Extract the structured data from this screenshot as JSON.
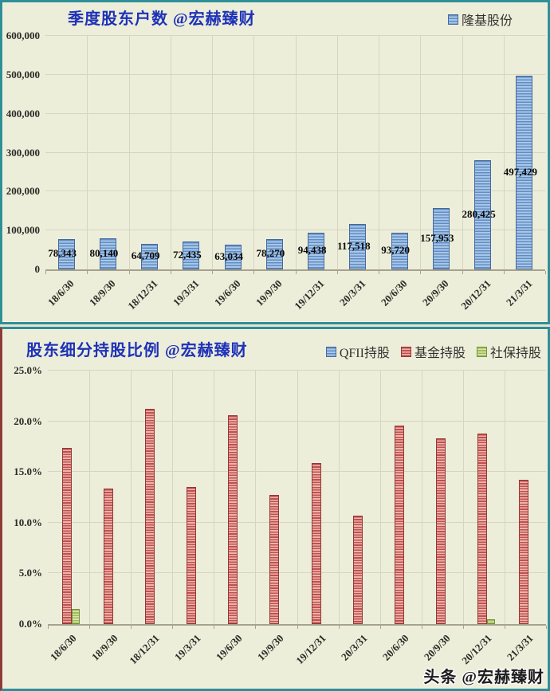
{
  "colors": {
    "panel_bg": "#edeeda",
    "border_teal": "#2f8f96",
    "border_maroon": "#8f3a35",
    "title_blue": "#1e32b8",
    "grid": "#d7d4c0",
    "axis": "#a6a28e",
    "bar_blue_dark": "#5f8cc3",
    "bar_blue_light": "#a9c7e8",
    "bar_red_dark": "#c0504d",
    "bar_red_light": "#ecb5ae",
    "bar_green_dark": "#9bbb59",
    "bar_green_light": "#dce6ae"
  },
  "watermark": {
    "text": "头条 @宏赫臻财"
  },
  "chart_data": [
    {
      "type": "bar",
      "title": "季度股东户数 @宏赫臻财",
      "legend": [
        {
          "name": "隆基股份",
          "swatch": "blue-striped"
        }
      ],
      "legend_position": "top-right",
      "grid": true,
      "categories": [
        "18/6/30",
        "18/9/30",
        "18/12/31",
        "19/3/31",
        "19/6/30",
        "19/9/30",
        "19/12/31",
        "20/3/31",
        "20/6/30",
        "20/9/30",
        "20/12/31",
        "21/3/31"
      ],
      "values": [
        78343,
        80140,
        64709,
        72435,
        63034,
        78270,
        94438,
        117518,
        93720,
        157953,
        280425,
        497429
      ],
      "data_labels": [
        "78,343",
        "80,140",
        "64,709",
        "72,435",
        "63,034",
        "78,270",
        "94,438",
        "117,518",
        "93,720",
        "157,953",
        "280,425",
        "497,429"
      ],
      "ylim": [
        0,
        600000
      ],
      "yticks": [
        "0",
        "100,000",
        "200,000",
        "300,000",
        "400,000",
        "500,000",
        "600,000"
      ]
    },
    {
      "type": "bar",
      "title": "股东细分持股比例 @宏赫臻财",
      "legend_position": "top-right",
      "grid": true,
      "categories": [
        "18/6/30",
        "18/9/30",
        "18/12/31",
        "19/3/31",
        "19/6/30",
        "19/9/30",
        "19/12/31",
        "20/3/31",
        "20/6/30",
        "20/9/30",
        "20/12/31",
        "21/3/31"
      ],
      "series": [
        {
          "name": "QFII持股",
          "swatch": "blue-striped",
          "values": [
            0,
            0,
            0,
            0,
            0,
            0,
            0,
            0,
            0,
            0,
            0,
            0
          ]
        },
        {
          "name": "基金持股",
          "swatch": "red-striped",
          "values": [
            17.4,
            13.4,
            21.2,
            13.5,
            20.6,
            12.7,
            15.9,
            10.7,
            19.6,
            18.3,
            18.8,
            14.2
          ]
        },
        {
          "name": "社保持股",
          "swatch": "green-striped",
          "values": [
            1.5,
            0,
            0,
            0,
            0,
            0,
            0,
            0,
            0,
            0,
            0.5,
            0
          ]
        }
      ],
      "ylim": [
        0,
        25
      ],
      "yticks": [
        "0.0%",
        "5.0%",
        "10.0%",
        "15.0%",
        "20.0%",
        "25.0%"
      ]
    }
  ]
}
